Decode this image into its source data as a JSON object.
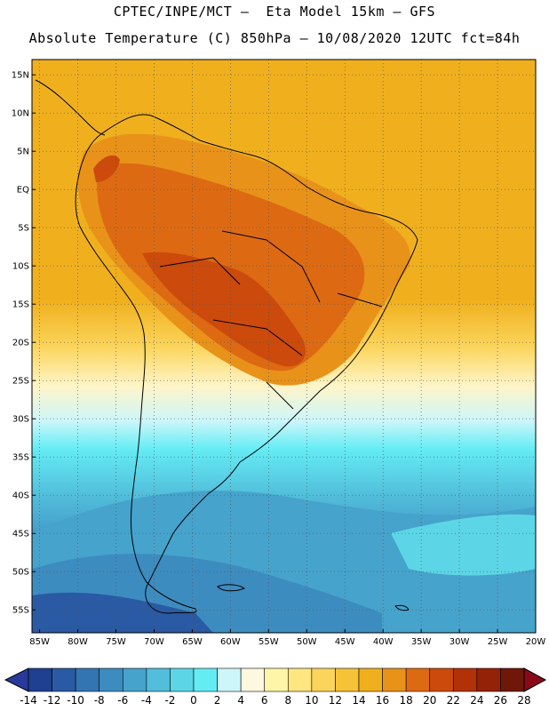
{
  "header": {
    "line1": "CPTEC/INPE/MCT –  Eta Model 15km – GFS",
    "line2": "Absolute Temperature (C) 850hPa – 10/08/2020 12UTC fct=84h"
  },
  "map": {
    "lat_labels": [
      "15N",
      "10N",
      "5N",
      "EQ",
      "5S",
      "10S",
      "15S",
      "20S",
      "25S",
      "30S",
      "35S",
      "40S",
      "45S",
      "50S",
      "55S"
    ],
    "lat_values": [
      15,
      10,
      5,
      0,
      -5,
      -10,
      -15,
      -20,
      -25,
      -30,
      -35,
      -40,
      -45,
      -50,
      -55
    ],
    "lon_labels": [
      "85W",
      "80W",
      "75W",
      "70W",
      "65W",
      "60W",
      "55W",
      "50W",
      "45W",
      "40W",
      "35W",
      "30W",
      "25W",
      "20W"
    ],
    "lon_values": [
      -85,
      -80,
      -75,
      -70,
      -65,
      -60,
      -55,
      -50,
      -45,
      -40,
      -35,
      -30,
      -25,
      -20
    ],
    "lat_range": [
      -58,
      17
    ],
    "lon_range": [
      -86,
      -20
    ]
  },
  "colorbar": {
    "labels": [
      "-14",
      "-12",
      "-10",
      "-8",
      "-6",
      "-4",
      "-2",
      "0",
      "2",
      "4",
      "6",
      "8",
      "10",
      "12",
      "14",
      "16",
      "18",
      "20",
      "22",
      "24",
      "26",
      "28"
    ],
    "colors": [
      "#1f3f8f",
      "#2a5aa3",
      "#3375b2",
      "#3d8cc0",
      "#46a3cc",
      "#52bedb",
      "#5cd6e6",
      "#64ecf4",
      "#cdf6fb",
      "#fff8e0",
      "#fff5a8",
      "#ffe680",
      "#fbd45a",
      "#f5c238",
      "#f0b01e",
      "#e8921a",
      "#dd6a12",
      "#cc4a0c",
      "#b23208",
      "#942206",
      "#701808"
    ],
    "min_color": "#2a3a9a",
    "max_color": "#8a0a1a"
  }
}
